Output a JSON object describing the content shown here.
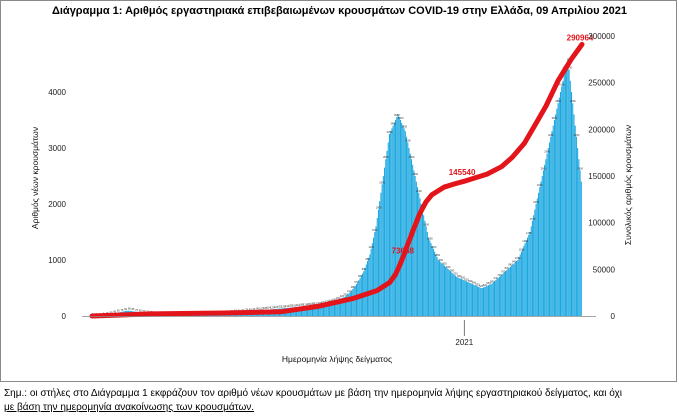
{
  "title": "Διάγραμμα 1: Αριθμός εργαστηριακά επιβεβαιωμένων κρουσμάτων COVID-19 στην Ελλάδα, 09 Απριλίου 2021",
  "note": {
    "line1": "Σημ.: οι στήλες στο Διάγραμμα 1 εκφράζουν τον αριθμό νέων κρουσμάτων με βάση την ημερομηνία λήψης εργαστηριακού δείγματος, και όχι",
    "line2": "με βάση την ημερομηνία ανακοίνωσης των κρουσμάτων."
  },
  "colors": {
    "bars": "#1aa7e0",
    "cumulative_line": "#e4141b"
  },
  "chart_data": {
    "type": "bar",
    "title": "Διάγραμμα 1: Αριθμός εργαστηριακά επιβεβαιωμένων κρουσμάτων COVID-19 στην Ελλάδα, 09 Απριλίου 2021",
    "xlabel": "Ημερομηνία λήψης δείγματος",
    "ylabel": "Αριθμός νέων κρουσμάτων",
    "y2label": "Συνολικός αριθμός κρουσμάτων",
    "ylim": [
      0,
      5000
    ],
    "y2lim": [
      0,
      300000
    ],
    "yticks": [
      0,
      1000,
      2000,
      3000,
      4000
    ],
    "y2ticks": [
      0,
      50000,
      100000,
      150000,
      200000,
      250000,
      300000
    ],
    "x_tick_label": "2021",
    "grid": false,
    "x": {
      "start": "2020-02-26",
      "end": "2021-04-09"
    },
    "series": [
      {
        "kind": "bars",
        "values": [
          1,
          1,
          2,
          2,
          3,
          3,
          4,
          5,
          6,
          8,
          10,
          12,
          15,
          20,
          25,
          30,
          35,
          40,
          45,
          50,
          55,
          60,
          65,
          70,
          75,
          80,
          85,
          90,
          92,
          95,
          95,
          90,
          88,
          85,
          80,
          78,
          75,
          70,
          65,
          60,
          58,
          55,
          50,
          48,
          45,
          42,
          40,
          38,
          35,
          32,
          30,
          28,
          26,
          25,
          24,
          22,
          20,
          20,
          18,
          18,
          17,
          16,
          15,
          15,
          14,
          14,
          13,
          13,
          12,
          12,
          12,
          11,
          11,
          11,
          10,
          10,
          10,
          10,
          10,
          10,
          11,
          11,
          12,
          12,
          13,
          14,
          15,
          15,
          16,
          17,
          18,
          18,
          19,
          20,
          21,
          22,
          23,
          24,
          25,
          26,
          27,
          28,
          30,
          32,
          34,
          36,
          38,
          40,
          42,
          44,
          46,
          48,
          50,
          52,
          54,
          56,
          58,
          60,
          62,
          64,
          66,
          68,
          70,
          72,
          74,
          76,
          78,
          80,
          82,
          84,
          86,
          88,
          90,
          92,
          94,
          96,
          98,
          100,
          102,
          104,
          106,
          108,
          110,
          112,
          114,
          116,
          118,
          120,
          122,
          124,
          126,
          128,
          130,
          132,
          134,
          136,
          138,
          140,
          142,
          144,
          146,
          148,
          150,
          152,
          154,
          156,
          158,
          160,
          162,
          164,
          166,
          168,
          170,
          172,
          174,
          176,
          178,
          180,
          182,
          184,
          186,
          188,
          190,
          192,
          194,
          196,
          198,
          200,
          205,
          210,
          215,
          220,
          225,
          230,
          235,
          240,
          245,
          250,
          260,
          270,
          280,
          290,
          300,
          310,
          320,
          330,
          340,
          350,
          370,
          390,
          410,
          430,
          450,
          480,
          510,
          540,
          570,
          600,
          640,
          680,
          720,
          760,
          800,
          860,
          920,
          980,
          1040,
          1100,
          1200,
          1300,
          1400,
          1500,
          1600,
          1750,
          1900,
          2050,
          2200,
          2350,
          2500,
          2650,
          2800,
          2950,
          3100,
          3250,
          3300,
          3350,
          3400,
          3450,
          3500,
          3550,
          3600,
          3550,
          3500,
          3450,
          3400,
          3350,
          3300,
          3200,
          3100,
          3000,
          2900,
          2800,
          2700,
          2600,
          2500,
          2400,
          2300,
          2200,
          2100,
          2000,
          1900,
          1800,
          1700,
          1600,
          1500,
          1400,
          1350,
          1300,
          1250,
          1200,
          1150,
          1100,
          1050,
          1000,
          980,
          960,
          940,
          920,
          900,
          880,
          860,
          840,
          820,
          800,
          780,
          760,
          740,
          720,
          700,
          690,
          680,
          670,
          660,
          650,
          640,
          630,
          620,
          610,
          600,
          590,
          580,
          570,
          560,
          550,
          540,
          530,
          520,
          510,
          500,
          500,
          510,
          520,
          530,
          540,
          550,
          560,
          570,
          580,
          600,
          620,
          640,
          660,
          680,
          700,
          720,
          740,
          760,
          780,
          800,
          820,
          840,
          860,
          880,
          900,
          920,
          940,
          960,
          980,
          1000,
          1050,
          1100,
          1150,
          1200,
          1250,
          1300,
          1350,
          1400,
          1450,
          1500,
          1600,
          1700,
          1800,
          1900,
          2000,
          2100,
          2200,
          2300,
          2400,
          2500,
          2600,
          2700,
          2800,
          2900,
          3000,
          3100,
          3200,
          3300,
          3400,
          3500,
          3600,
          3700,
          3800,
          3900,
          4000,
          4100,
          4200,
          4300,
          4400,
          4500,
          4600,
          4400,
          4200,
          4000,
          3800,
          3600,
          3400,
          3200,
          3000,
          2800,
          2600,
          2400
        ]
      },
      {
        "kind": "line",
        "name": "Συνολικός αριθμός κρουσμάτων",
        "points": [
          {
            "x": "2020-02-26",
            "y": 0
          },
          {
            "x": "2020-04-15",
            "y": 2200
          },
          {
            "x": "2020-06-15",
            "y": 3200
          },
          {
            "x": "2020-08-01",
            "y": 4500
          },
          {
            "x": "2020-09-01",
            "y": 10300
          },
          {
            "x": "2020-10-01",
            "y": 19000
          },
          {
            "x": "2020-10-20",
            "y": 27000
          },
          {
            "x": "2020-10-31",
            "y": 36000
          },
          {
            "x": "2020-11-05",
            "y": 45000
          },
          {
            "x": "2020-11-10",
            "y": 60000
          },
          {
            "x": "2020-11-15",
            "y": 77000
          },
          {
            "x": "2020-11-20",
            "y": 94000
          },
          {
            "x": "2020-11-25",
            "y": 110000
          },
          {
            "x": "2020-11-30",
            "y": 122000
          },
          {
            "x": "2020-12-05",
            "y": 130000
          },
          {
            "x": "2020-12-15",
            "y": 138000
          },
          {
            "x": "2020-12-25",
            "y": 142000
          },
          {
            "x": "2020-12-31",
            "y": 144000
          },
          {
            "x": "2021-01-10",
            "y": 148000
          },
          {
            "x": "2021-01-20",
            "y": 152000
          },
          {
            "x": "2021-02-01",
            "y": 160000
          },
          {
            "x": "2021-02-10",
            "y": 170000
          },
          {
            "x": "2021-02-20",
            "y": 185000
          },
          {
            "x": "2021-03-01",
            "y": 205000
          },
          {
            "x": "2021-03-10",
            "y": 225000
          },
          {
            "x": "2021-03-20",
            "y": 252000
          },
          {
            "x": "2021-03-31",
            "y": 275000
          },
          {
            "x": "2021-04-09",
            "y": 290964
          }
        ]
      }
    ],
    "annotations": [
      {
        "text": "73658",
        "x": "2020-11-14",
        "y": 73658
      },
      {
        "text": "145540",
        "x": "2020-12-31",
        "y": 145540
      },
      {
        "text": "290964",
        "x": "2021-04-09",
        "y": 290964
      }
    ]
  }
}
